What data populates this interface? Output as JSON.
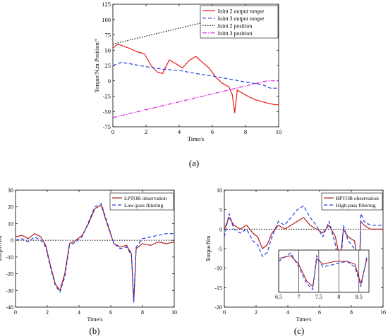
{
  "chart_data": [
    {
      "panel_label": "(a)",
      "type": "line",
      "xlabel": "Time/s",
      "ylabel": "Torque/N.m   Position/°",
      "xlim": [
        0,
        10
      ],
      "ylim": [
        -75,
        125
      ],
      "xticks": [
        0,
        2,
        4,
        6,
        8,
        10
      ],
      "yticks": [
        -75,
        -50,
        -25,
        0,
        25,
        50,
        75,
        100,
        125
      ],
      "grid": false,
      "legend_position": "top-right",
      "series": [
        {
          "name": "Joint 2 output torque",
          "color": "#e8191b",
          "dash": "solid",
          "x": [
            0,
            0.3,
            0.6,
            1.0,
            1.4,
            1.9,
            2.3,
            2.7,
            3.0,
            3.4,
            3.8,
            4.2,
            4.6,
            5.0,
            5.4,
            5.8,
            6.2,
            6.6,
            7.0,
            7.2,
            7.35,
            7.5,
            7.8,
            8.2,
            8.6,
            9.0,
            9.4,
            9.8,
            10
          ],
          "y": [
            53,
            60,
            57,
            53,
            48,
            44,
            25,
            14,
            12,
            34,
            28,
            21,
            33,
            40,
            30,
            21,
            6,
            -4,
            -10,
            -22,
            -52,
            -15,
            -20,
            -26,
            -31,
            -34,
            -37,
            -39,
            -39
          ]
        },
        {
          "name": "Joint 3 output torque",
          "color": "#1f3fe0",
          "dash": "dashed",
          "x": [
            0,
            0.5,
            1.0,
            2.0,
            3.0,
            4.0,
            5.0,
            6.0,
            7.0,
            8.0,
            9.0,
            9.5,
            10
          ],
          "y": [
            25,
            30,
            28,
            23,
            19,
            17,
            12,
            8,
            3,
            -2,
            -6,
            -12,
            -12
          ]
        },
        {
          "name": "Joint 2 position",
          "color": "#000000",
          "dash": "dotted",
          "x": [
            0,
            9.3,
            10
          ],
          "y": [
            60,
            120,
            120
          ]
        },
        {
          "name": "Joint 3 position",
          "color": "#d81fd8",
          "dash": "dashdot",
          "x": [
            0,
            9.3,
            10
          ],
          "y": [
            -60,
            0,
            0
          ]
        }
      ]
    },
    {
      "panel_label": "(b)",
      "type": "line",
      "xlabel": "Time/s",
      "ylabel": "Torque/Nm",
      "xlim": [
        0,
        10
      ],
      "ylim": [
        -40,
        30
      ],
      "xticks": [
        0,
        2,
        4,
        6,
        8,
        10
      ],
      "yticks": [
        -40,
        -30,
        -20,
        -10,
        0,
        10,
        20,
        30
      ],
      "grid": false,
      "legend_position": "top-right",
      "zero_line": true,
      "series": [
        {
          "name": "LPTOB observation",
          "color": "#b3191b",
          "dash": "solid",
          "x": [
            0,
            0.4,
            0.8,
            1.2,
            1.6,
            1.9,
            2.2,
            2.5,
            2.8,
            3.1,
            3.4,
            3.8,
            4.2,
            4.6,
            5.0,
            5.4,
            5.8,
            6.2,
            6.6,
            7.0,
            7.3,
            7.45,
            7.6,
            8.0,
            8.5,
            9.0,
            9.5,
            10
          ],
          "y": [
            2,
            3,
            1,
            4,
            2,
            -3,
            -15,
            -26,
            -30,
            -20,
            -2,
            0,
            3,
            10,
            19,
            21,
            9,
            -2,
            -4,
            -3,
            -8,
            -37,
            -5,
            -2,
            -3,
            -1,
            -2,
            -1
          ]
        },
        {
          "name": "Low-pass filtering",
          "color": "#1f3fe0",
          "dash": "dashed",
          "x": [
            0,
            0.4,
            0.8,
            1.2,
            1.6,
            1.9,
            2.2,
            2.5,
            2.8,
            3.1,
            3.4,
            3.8,
            4.2,
            4.6,
            5.0,
            5.4,
            5.8,
            6.2,
            6.6,
            7.0,
            7.3,
            7.45,
            7.6,
            8.0,
            8.5,
            9.0,
            9.5,
            10
          ],
          "y": [
            0,
            1,
            -1,
            2,
            0,
            -4,
            -16,
            -27,
            -31,
            -22,
            -3,
            -1,
            2,
            11,
            20,
            22,
            10,
            -2,
            -5,
            -4,
            -9,
            -37,
            -4,
            1,
            2,
            3,
            4,
            4
          ]
        }
      ]
    },
    {
      "panel_label": "(c)",
      "type": "line",
      "xlabel": "Time/s",
      "ylabel": "Torque/Nm",
      "xlim": [
        0,
        10
      ],
      "ylim": [
        -20,
        10
      ],
      "xticks": [
        0,
        2,
        4,
        6,
        8,
        10
      ],
      "yticks": [
        -20,
        -15,
        -10,
        -5,
        0,
        5,
        10
      ],
      "grid": false,
      "legend_position": "top-right",
      "zero_line": true,
      "series": [
        {
          "name": "BPTOB observation",
          "color": "#b3191b",
          "dash": "solid",
          "x": [
            0,
            0.3,
            0.6,
            1.0,
            1.4,
            1.8,
            2.1,
            2.4,
            2.7,
            3.0,
            3.4,
            3.8,
            4.2,
            4.6,
            5.0,
            5.4,
            5.8,
            6.2,
            6.6,
            7.0,
            7.3,
            7.5,
            7.8,
            8.2,
            8.5,
            8.6,
            8.8,
            9.2,
            9.6,
            10
          ],
          "y": [
            0,
            3,
            1,
            0,
            1,
            -1,
            -2,
            -5,
            -4,
            -1,
            1,
            0,
            1,
            2,
            3,
            1,
            0,
            -1,
            1,
            -2,
            -8,
            0,
            -2,
            -3,
            -11,
            2,
            1,
            0,
            0,
            0
          ]
        },
        {
          "name": "High-pass filtering",
          "color": "#1f3fe0",
          "dash": "dashed",
          "x": [
            0,
            0.3,
            0.6,
            1.0,
            1.4,
            1.8,
            2.1,
            2.4,
            2.7,
            3.0,
            3.4,
            3.8,
            4.2,
            4.6,
            5.0,
            5.4,
            5.8,
            6.2,
            6.6,
            7.0,
            7.3,
            7.5,
            7.8,
            8.2,
            8.5,
            8.6,
            8.8,
            9.2,
            9.6,
            10
          ],
          "y": [
            -2,
            4,
            0,
            -1,
            0,
            -3,
            -4,
            -7,
            -6,
            -2,
            2,
            1,
            3,
            5,
            6,
            3,
            1,
            -2,
            2,
            -4,
            -12,
            1,
            -3,
            -5,
            -15,
            4,
            2,
            1,
            1,
            1
          ]
        }
      ],
      "inset": {
        "xlim": [
          6.5,
          8.75
        ],
        "ylim": [
          -15,
          0
        ],
        "xticks": [
          6.5,
          7,
          7.5,
          8,
          8.5
        ],
        "tick_labels": [
          "6.5",
          "7",
          "7.5",
          "8",
          "8.5"
        ],
        "series": [
          {
            "name": "BPTOB observation",
            "x": [
              6.5,
              6.8,
              7.0,
              7.2,
              7.35,
              7.45,
              7.6,
              7.9,
              8.2,
              8.4,
              8.55,
              8.7
            ],
            "y": [
              -3,
              -2,
              -5,
              -11,
              -13,
              -3,
              -5,
              -4,
              -4,
              -5,
              -12,
              -3
            ]
          },
          {
            "name": "High-pass filtering",
            "x": [
              6.5,
              6.8,
              7.0,
              7.2,
              7.35,
              7.45,
              7.6,
              7.9,
              8.2,
              8.4,
              8.55,
              8.7
            ],
            "y": [
              -4,
              -1,
              -6,
              -12,
              -14,
              -2,
              -6,
              -5,
              -4,
              -6,
              -13,
              -2
            ]
          }
        ]
      }
    }
  ]
}
